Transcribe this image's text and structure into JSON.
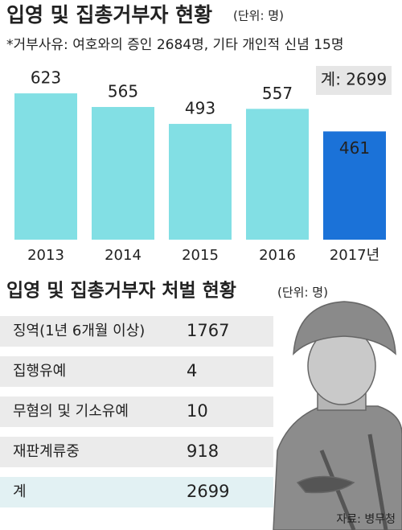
{
  "chart_data": {
    "type": "bar",
    "title": "입영 및 집총거부자 현황",
    "unit": "(단위: 명)",
    "note": "*거부사유: 여호와의 증인 2684명, 기타 개인적 신념 15명",
    "categories": [
      "2013",
      "2014",
      "2015",
      "2016",
      "2017년"
    ],
    "values": [
      623,
      565,
      493,
      557,
      461
    ],
    "colors": [
      "#82dfe4",
      "#82dfe4",
      "#82dfe4",
      "#82dfe4",
      "#1b72d8"
    ],
    "total_label": "계: 2699"
  },
  "table": {
    "title": "입영 및 집총거부자 처벌 현황",
    "unit": "(단위: 명)",
    "rows": [
      [
        "징역(1년 6개월 이상)",
        1767
      ],
      [
        "집행유예",
        4
      ],
      [
        "무혐의 및 기소유예",
        10
      ],
      [
        "재판계류중",
        918
      ],
      [
        "계",
        2699
      ]
    ]
  },
  "source": "자료: 병무청"
}
